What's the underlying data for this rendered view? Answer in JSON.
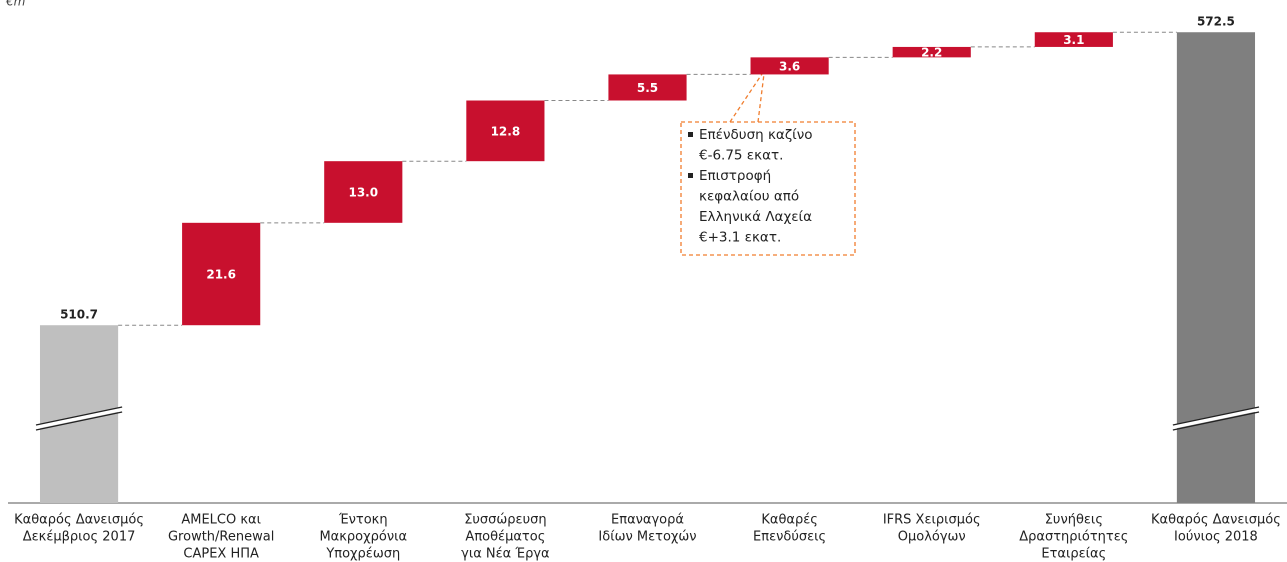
{
  "chart_data": {
    "type": "waterfall",
    "unit_label": "€m",
    "categories": [
      [
        "Καθαρός Δανεισμός",
        "Δεκέμβριος 2017"
      ],
      [
        "AMELCO και",
        "Growth/Renewal",
        "CAPEX ΗΠΑ"
      ],
      [
        "Έντοκη",
        "Μακροχρόνια",
        "Υποχρέωση"
      ],
      [
        "Συσσώρευση",
        "Αποθέματος",
        "για Νέα Έργα"
      ],
      [
        "Επαναγορά",
        "Ιδίων Μετοχών"
      ],
      [
        "Καθαρές",
        "Επενδύσεις"
      ],
      [
        "IFRS Χειρισμός",
        "Ομολόγων"
      ],
      [
        "Συνήθεις",
        "Δραστηριότητες",
        "Εταιρείας"
      ],
      [
        "Καθαρός Δανεισμός",
        "Ιούνιος 2018"
      ]
    ],
    "measures": [
      "total",
      "relative",
      "relative",
      "relative",
      "relative",
      "relative",
      "relative",
      "relative",
      "total"
    ],
    "values": [
      510.7,
      21.6,
      13,
      12.8,
      5.5,
      3.6,
      2.2,
      3.1,
      572.5
    ],
    "value_labels": [
      "510.7",
      "21.6",
      "13.0",
      "12.8",
      "5.5",
      "3.6",
      "2.2",
      "3.1",
      "572.5"
    ],
    "colors": {
      "start": "#bfbfbf",
      "end": "#7f7f7f",
      "relative": "#c8102e"
    },
    "ylim": [
      473.2,
      579.3
    ],
    "broken_axis": true,
    "annotation": {
      "target": 5,
      "items": [
        [
          "Επένδυση καζίνο",
          "€-6.75 εκατ."
        ],
        [
          "Επιστροφή",
          "κεφαλαίου από",
          "Ελληνικά Λαχεία",
          "€+3.1 εκατ."
        ]
      ]
    }
  }
}
